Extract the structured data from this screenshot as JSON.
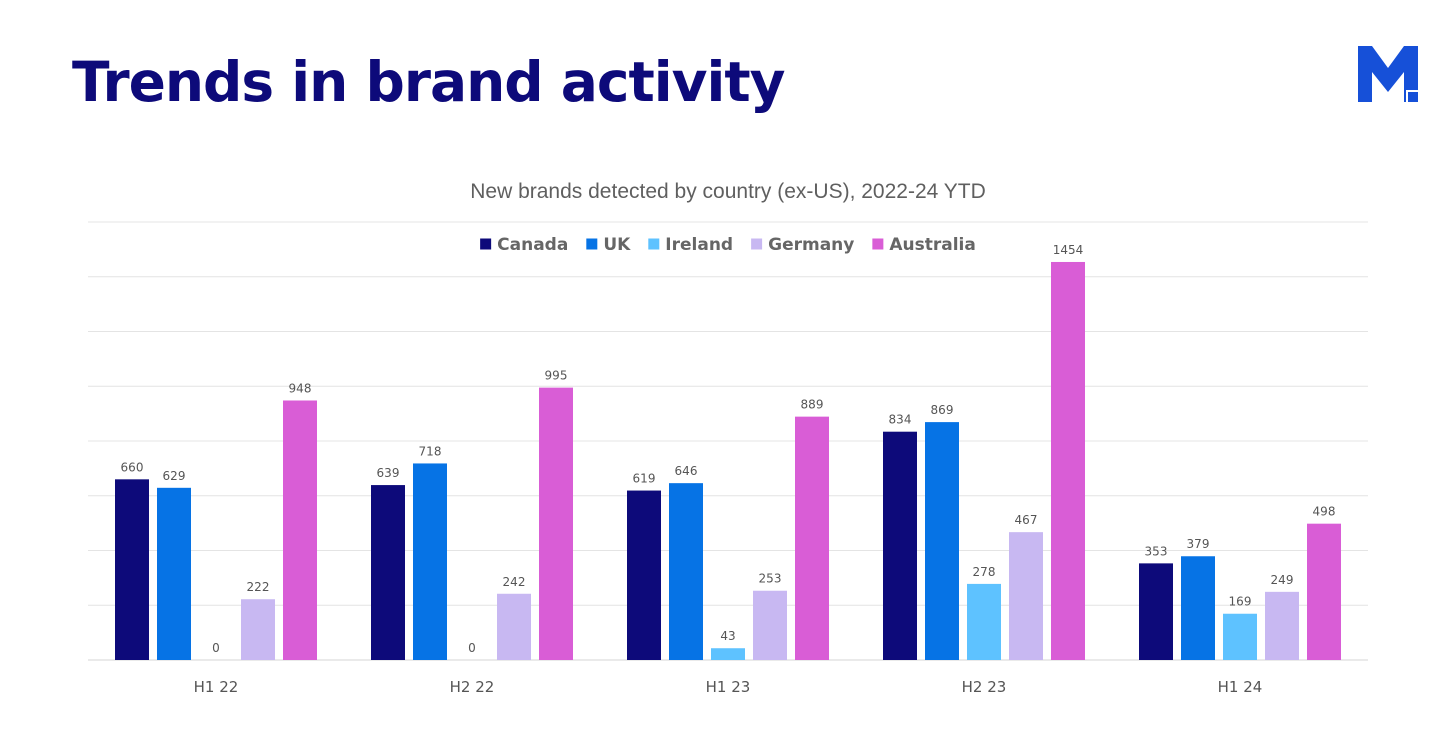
{
  "page": {
    "title": "Trends in brand activity",
    "logo_letter": "M"
  },
  "colors": {
    "title": "#0d0a7a",
    "logo": "#1650d8",
    "grid": "#e4e4e4",
    "axis": "#d6d6d6"
  },
  "chart_data": {
    "type": "bar",
    "title": "New brands detected by country (ex-US), 2022-24 YTD",
    "categories": [
      "H1 22",
      "H2 22",
      "H1 23",
      "H2 23",
      "H1 24"
    ],
    "series": [
      {
        "name": "Canada",
        "color": "#0d0a7a",
        "values": [
          660,
          639,
          619,
          834,
          353
        ]
      },
      {
        "name": "UK",
        "color": "#0673e5",
        "values": [
          629,
          718,
          646,
          869,
          379
        ]
      },
      {
        "name": "Ireland",
        "color": "#5ec2ff",
        "values": [
          0,
          0,
          43,
          278,
          169
        ]
      },
      {
        "name": "Germany",
        "color": "#c8b8f2",
        "values": [
          222,
          242,
          253,
          467,
          249
        ]
      },
      {
        "name": "Australia",
        "color": "#d95dd6",
        "values": [
          948,
          995,
          889,
          1454,
          498
        ]
      }
    ],
    "xlabel": "",
    "ylabel": "",
    "ylim": [
      0,
      1600
    ],
    "grid": true,
    "y_tick_labels_shown": false,
    "legend_position": "top-center"
  }
}
